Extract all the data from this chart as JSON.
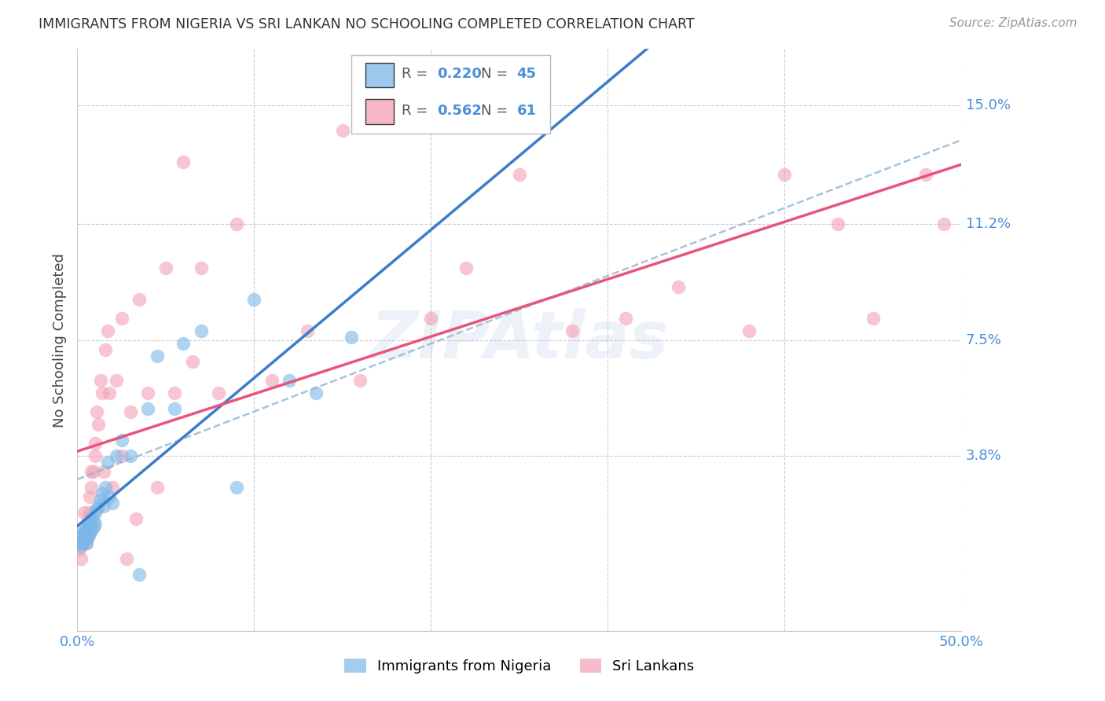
{
  "title": "IMMIGRANTS FROM NIGERIA VS SRI LANKAN NO SCHOOLING COMPLETED CORRELATION CHART",
  "source": "Source: ZipAtlas.com",
  "ylabel": "No Schooling Completed",
  "ytick_labels": [
    "15.0%",
    "11.2%",
    "7.5%",
    "3.8%"
  ],
  "ytick_values": [
    0.15,
    0.112,
    0.075,
    0.038
  ],
  "xlim": [
    0.0,
    0.5
  ],
  "ylim": [
    -0.018,
    0.168
  ],
  "legend_nigeria_R": "0.220",
  "legend_nigeria_N": "45",
  "legend_srilanka_R": "0.562",
  "legend_srilanka_N": "61",
  "color_nigeria": "#7bb8e8",
  "color_srilanka": "#f4a0b5",
  "color_nigeria_line": "#3a7dc9",
  "color_srilanka_line": "#e8547a",
  "color_dashed": "#8ab0d0",
  "color_axis_labels": "#4a90d9",
  "background_color": "#ffffff",
  "grid_color": "#cccccc",
  "nigeria_scatter_x": [
    0.001,
    0.002,
    0.002,
    0.003,
    0.003,
    0.004,
    0.004,
    0.005,
    0.005,
    0.005,
    0.006,
    0.006,
    0.006,
    0.007,
    0.007,
    0.007,
    0.008,
    0.008,
    0.009,
    0.009,
    0.01,
    0.01,
    0.011,
    0.012,
    0.013,
    0.014,
    0.015,
    0.016,
    0.017,
    0.018,
    0.02,
    0.022,
    0.025,
    0.03,
    0.035,
    0.04,
    0.045,
    0.055,
    0.06,
    0.07,
    0.09,
    0.1,
    0.12,
    0.135,
    0.155
  ],
  "nigeria_scatter_y": [
    0.01,
    0.009,
    0.012,
    0.01,
    0.013,
    0.011,
    0.014,
    0.01,
    0.012,
    0.015,
    0.012,
    0.014,
    0.016,
    0.013,
    0.015,
    0.016,
    0.014,
    0.018,
    0.015,
    0.017,
    0.016,
    0.02,
    0.021,
    0.022,
    0.024,
    0.026,
    0.022,
    0.028,
    0.036,
    0.025,
    0.023,
    0.038,
    0.043,
    0.038,
    0.0,
    0.053,
    0.07,
    0.053,
    0.074,
    0.078,
    0.028,
    0.088,
    0.062,
    0.058,
    0.076
  ],
  "srilanka_scatter_x": [
    0.001,
    0.001,
    0.002,
    0.002,
    0.003,
    0.003,
    0.004,
    0.004,
    0.005,
    0.005,
    0.006,
    0.006,
    0.007,
    0.007,
    0.007,
    0.008,
    0.008,
    0.009,
    0.01,
    0.01,
    0.011,
    0.012,
    0.013,
    0.014,
    0.015,
    0.016,
    0.017,
    0.018,
    0.02,
    0.022,
    0.025,
    0.025,
    0.028,
    0.03,
    0.033,
    0.035,
    0.04,
    0.045,
    0.05,
    0.055,
    0.06,
    0.065,
    0.07,
    0.08,
    0.09,
    0.11,
    0.13,
    0.15,
    0.16,
    0.2,
    0.22,
    0.25,
    0.28,
    0.31,
    0.34,
    0.38,
    0.4,
    0.43,
    0.45,
    0.48,
    0.49
  ],
  "srilanka_scatter_y": [
    0.008,
    0.01,
    0.01,
    0.005,
    0.01,
    0.013,
    0.012,
    0.02,
    0.01,
    0.014,
    0.012,
    0.018,
    0.015,
    0.02,
    0.025,
    0.028,
    0.033,
    0.033,
    0.038,
    0.042,
    0.052,
    0.048,
    0.062,
    0.058,
    0.033,
    0.072,
    0.078,
    0.058,
    0.028,
    0.062,
    0.038,
    0.082,
    0.005,
    0.052,
    0.018,
    0.088,
    0.058,
    0.028,
    0.098,
    0.058,
    0.132,
    0.068,
    0.098,
    0.058,
    0.112,
    0.062,
    0.078,
    0.142,
    0.062,
    0.082,
    0.098,
    0.128,
    0.078,
    0.082,
    0.092,
    0.078,
    0.128,
    0.112,
    0.082,
    0.128,
    0.112
  ]
}
